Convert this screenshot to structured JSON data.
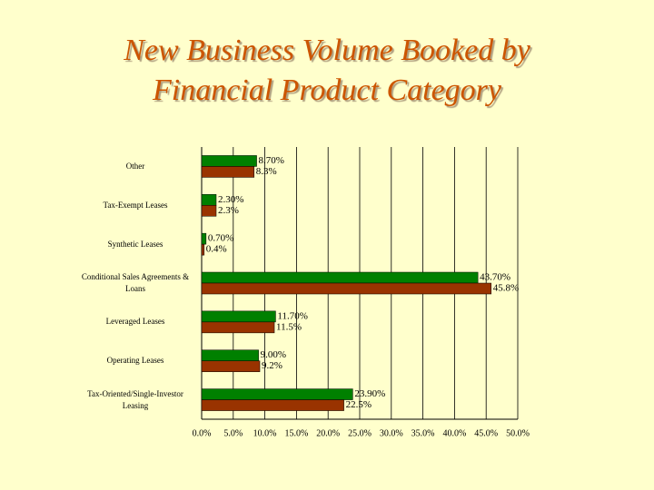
{
  "chart_data": {
    "type": "hbar",
    "title": "New Business Volume Booked by Financial Product Category",
    "categories": [
      "Other",
      "Tax-Exempt Leases",
      "Synthetic Leases",
      "Conditional Sales Agreements & Loans",
      "Leveraged Leases",
      "Operating Leases",
      "Tax-Oriented/Single-Investor Leasing"
    ],
    "series": [
      {
        "color": "#008000",
        "values": [
          8.7,
          2.3,
          0.7,
          43.7,
          11.7,
          9.0,
          23.9
        ],
        "value_labels": [
          "8.70%",
          "2.30%",
          "0.70%",
          "43.70%",
          "11.70%",
          "9.00%",
          "23.90%"
        ]
      },
      {
        "color": "#993300",
        "values": [
          8.3,
          2.3,
          0.4,
          45.8,
          11.5,
          9.2,
          22.5
        ],
        "value_labels": [
          "8.3%",
          "2.3%",
          "0.4%",
          "45.8%",
          "11.5%",
          "9.2%",
          "22.5%"
        ]
      }
    ],
    "xlim": [
      0,
      50
    ],
    "xticks": [
      {
        "value": 0,
        "label": "0.0%"
      },
      {
        "value": 5,
        "label": "5.0%"
      },
      {
        "value": 10,
        "label": "10.0%"
      },
      {
        "value": 15,
        "label": "15.0%"
      },
      {
        "value": 20,
        "label": "20.0%"
      },
      {
        "value": 25,
        "label": "25.0%"
      },
      {
        "value": 30,
        "label": "30.0%"
      },
      {
        "value": 35,
        "label": "35.0%"
      },
      {
        "value": 40,
        "label": "40.0%"
      },
      {
        "value": 45,
        "label": "45.0%"
      },
      {
        "value": 50,
        "label": "50.0%"
      }
    ],
    "grid": true
  }
}
